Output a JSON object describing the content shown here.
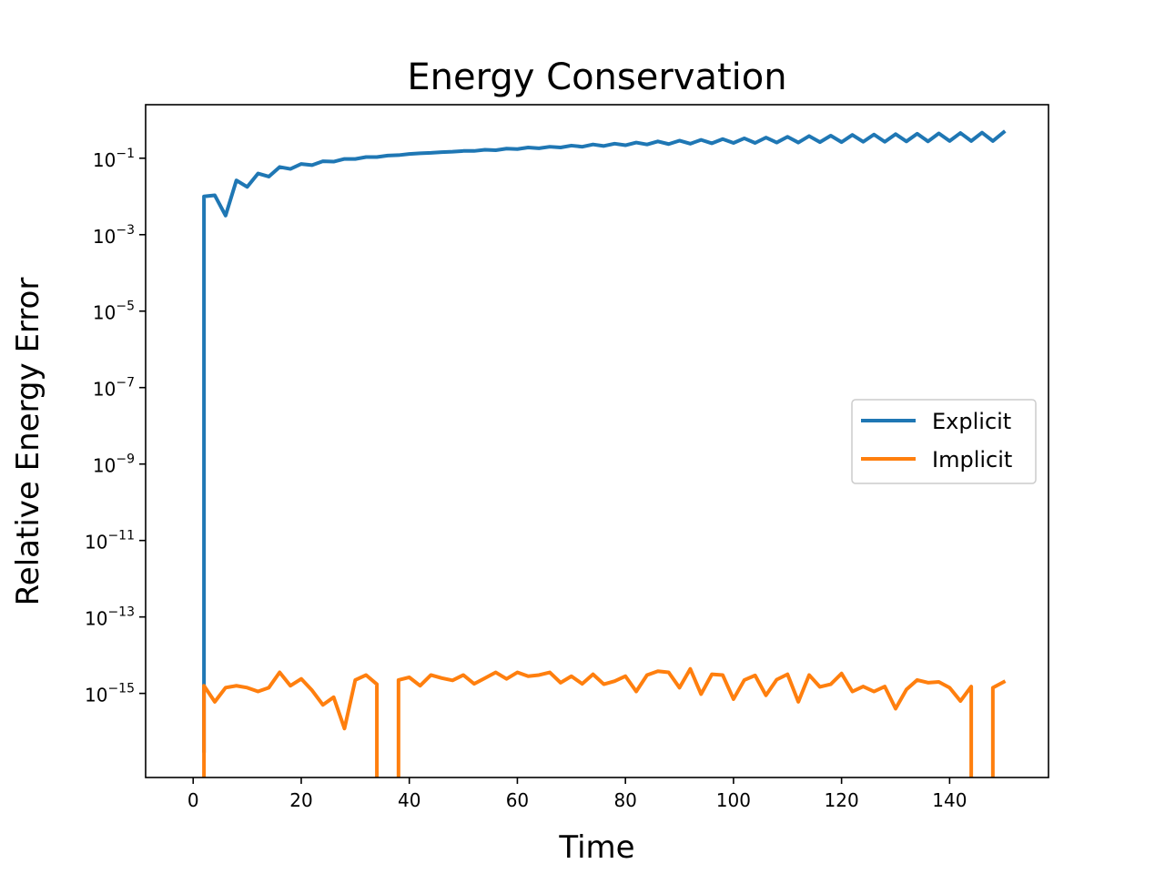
{
  "chart_data": {
    "type": "line",
    "title": "Energy Conservation",
    "xlabel": "Time",
    "ylabel": "Relative Energy Error",
    "yscale": "log",
    "xlim": [
      -8.8,
      158.3
    ],
    "ylim_exponent": [
      -17.2,
      0.4
    ],
    "x_ticks": [
      0,
      20,
      40,
      60,
      80,
      100,
      120,
      140
    ],
    "y_ticks": [
      {
        "exp": -1,
        "base": "10",
        "sup": "−1"
      },
      {
        "exp": -3,
        "base": "10",
        "sup": "−3"
      },
      {
        "exp": -5,
        "base": "10",
        "sup": "−5"
      },
      {
        "exp": -7,
        "base": "10",
        "sup": "−7"
      },
      {
        "exp": -9,
        "base": "10",
        "sup": "−9"
      },
      {
        "exp": -11,
        "base": "10",
        "sup": "−11"
      },
      {
        "exp": -13,
        "base": "10",
        "sup": "−13"
      },
      {
        "exp": -15,
        "base": "10",
        "sup": "−15"
      }
    ],
    "legend_position": "center-right",
    "series": [
      {
        "name": "Explicit",
        "color": "#1f77b4",
        "x": [
          2,
          2,
          4,
          6,
          8,
          10,
          12,
          14,
          16,
          18,
          20,
          22,
          24,
          26,
          28,
          30,
          32,
          34,
          36,
          38,
          40,
          42,
          44,
          46,
          48,
          50,
          52,
          54,
          56,
          58,
          60,
          62,
          64,
          66,
          68,
          70,
          72,
          74,
          76,
          78,
          80,
          82,
          84,
          86,
          88,
          90,
          92,
          94,
          96,
          98,
          100,
          102,
          104,
          106,
          108,
          110,
          112,
          114,
          116,
          118,
          120,
          122,
          124,
          126,
          128,
          130,
          132,
          134,
          136,
          138,
          140,
          142,
          144,
          146,
          148,
          150
        ],
        "log10_y": [
          -16.5,
          -2.0,
          -1.97,
          -2.5,
          -1.58,
          -1.75,
          -1.4,
          -1.48,
          -1.23,
          -1.28,
          -1.15,
          -1.18,
          -1.08,
          -1.09,
          -1.02,
          -1.02,
          -0.97,
          -0.97,
          -0.93,
          -0.92,
          -0.89,
          -0.87,
          -0.86,
          -0.84,
          -0.83,
          -0.81,
          -0.81,
          -0.78,
          -0.79,
          -0.75,
          -0.76,
          -0.72,
          -0.74,
          -0.7,
          -0.72,
          -0.67,
          -0.7,
          -0.64,
          -0.68,
          -0.62,
          -0.66,
          -0.59,
          -0.64,
          -0.56,
          -0.63,
          -0.54,
          -0.62,
          -0.52,
          -0.61,
          -0.5,
          -0.6,
          -0.48,
          -0.6,
          -0.46,
          -0.59,
          -0.44,
          -0.59,
          -0.42,
          -0.58,
          -0.41,
          -0.58,
          -0.39,
          -0.57,
          -0.38,
          -0.57,
          -0.37,
          -0.56,
          -0.36,
          -0.56,
          -0.35,
          -0.55,
          -0.34,
          -0.55,
          -0.33,
          -0.55,
          -0.32
        ]
      },
      {
        "name": "Implicit",
        "color": "#ff7f0e",
        "segments": [
          {
            "x": [
              2,
              2,
              4,
              6,
              8,
              10,
              12,
              14,
              16,
              18,
              20,
              22,
              24,
              26,
              28,
              30,
              32,
              34,
              34
            ],
            "log10_y": [
              -17.5,
              -14.8,
              -15.22,
              -14.85,
              -14.8,
              -14.85,
              -14.95,
              -14.85,
              -14.45,
              -14.8,
              -14.62,
              -14.92,
              -15.3,
              -15.1,
              -15.92,
              -14.65,
              -14.52,
              -14.76,
              -17.5
            ]
          },
          {
            "x": [
              38,
              38,
              40,
              42,
              44,
              46,
              48,
              50,
              52,
              54,
              56,
              58,
              60,
              62,
              64,
              66,
              68,
              70,
              72,
              74,
              76,
              78,
              80,
              82,
              84,
              86,
              88,
              90,
              92,
              94,
              96,
              98,
              100,
              102,
              104,
              106,
              108,
              110,
              112,
              114,
              116,
              118,
              120,
              122,
              124,
              126,
              128,
              130,
              132,
              134,
              136,
              138,
              140,
              142,
              144,
              144
            ],
            "log10_y": [
              -17.5,
              -14.65,
              -14.58,
              -14.8,
              -14.52,
              -14.6,
              -14.66,
              -14.52,
              -14.75,
              -14.6,
              -14.45,
              -14.62,
              -14.45,
              -14.55,
              -14.52,
              -14.45,
              -14.72,
              -14.55,
              -14.75,
              -14.5,
              -14.76,
              -14.68,
              -14.55,
              -14.95,
              -14.52,
              -14.42,
              -14.45,
              -14.85,
              -14.36,
              -15.02,
              -14.5,
              -14.52,
              -15.15,
              -14.65,
              -14.53,
              -15.05,
              -14.64,
              -14.5,
              -15.22,
              -14.52,
              -14.83,
              -14.76,
              -14.48,
              -14.95,
              -14.82,
              -14.95,
              -14.82,
              -15.4,
              -14.9,
              -14.65,
              -14.72,
              -14.7,
              -14.85,
              -15.2,
              -14.82,
              -17.5
            ]
          },
          {
            "x": [
              148,
              148,
              150
            ],
            "log10_y": [
              -17.5,
              -14.85,
              -14.7
            ]
          }
        ]
      }
    ]
  }
}
